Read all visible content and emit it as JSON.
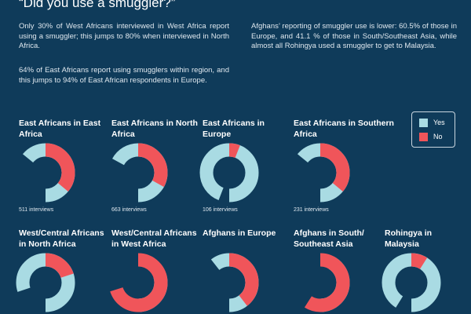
{
  "page": {
    "title": "“Did you use a smuggler?”",
    "paragraphs": [
      "Only 30% of West Africans interviewed in West Africa report using a smuggler; this jumps to 80% when interviewed in North Africa.",
      "64% of East Africans report using smugglers within region, and this jumps to 94% of East African respondents in Europe.",
      "Afghans’ reporting of smuggler use is lower: 60.5% of those in Europe, and 41.1 % of those in South/Southeast Asia, while almost all Rohingya used a smuggler to get to Malaysia."
    ]
  },
  "legend": {
    "items": [
      {
        "label": "Yes",
        "color": "#a9dbe3"
      },
      {
        "label": "No",
        "color": "#f0555a"
      }
    ]
  },
  "chart_data": [
    {
      "type": "pie",
      "title": "East Africans in East Africa",
      "labels": [
        "Yes",
        "No"
      ],
      "values": [
        64,
        36
      ],
      "note": "511 interviews"
    },
    {
      "type": "pie",
      "title": "East Africans in North Africa",
      "labels": [
        "Yes",
        "No"
      ],
      "values": [
        67,
        33
      ],
      "note": "663 interviews"
    },
    {
      "type": "pie",
      "title": "East Africans in Europe",
      "labels": [
        "Yes",
        "No"
      ],
      "values": [
        94,
        6
      ],
      "note": "106 interviews"
    },
    {
      "type": "pie",
      "title": "East Africans in Southern Africa",
      "labels": [
        "Yes",
        "No"
      ],
      "values": [
        64,
        36
      ],
      "note": "231 interviews"
    },
    {
      "type": "pie",
      "title": "West/Central Africans in North Africa",
      "labels": [
        "Yes",
        "No"
      ],
      "values": [
        80,
        20
      ],
      "note": ""
    },
    {
      "type": "pie",
      "title": "West/Central Africans in West Africa",
      "labels": [
        "Yes",
        "No"
      ],
      "values": [
        30,
        70
      ],
      "note": ""
    },
    {
      "type": "pie",
      "title": "Afghans in Europe",
      "labels": [
        "Yes",
        "No"
      ],
      "values": [
        60.5,
        39.5
      ],
      "note": ""
    },
    {
      "type": "pie",
      "title": "Afghans in South/ Southeast Asia",
      "labels": [
        "Yes",
        "No"
      ],
      "values": [
        41.1,
        58.9
      ],
      "note": ""
    },
    {
      "type": "pie",
      "title": "Rohingya in Malaysia",
      "labels": [
        "Yes",
        "No"
      ],
      "values": [
        91,
        9
      ],
      "note": ""
    }
  ]
}
